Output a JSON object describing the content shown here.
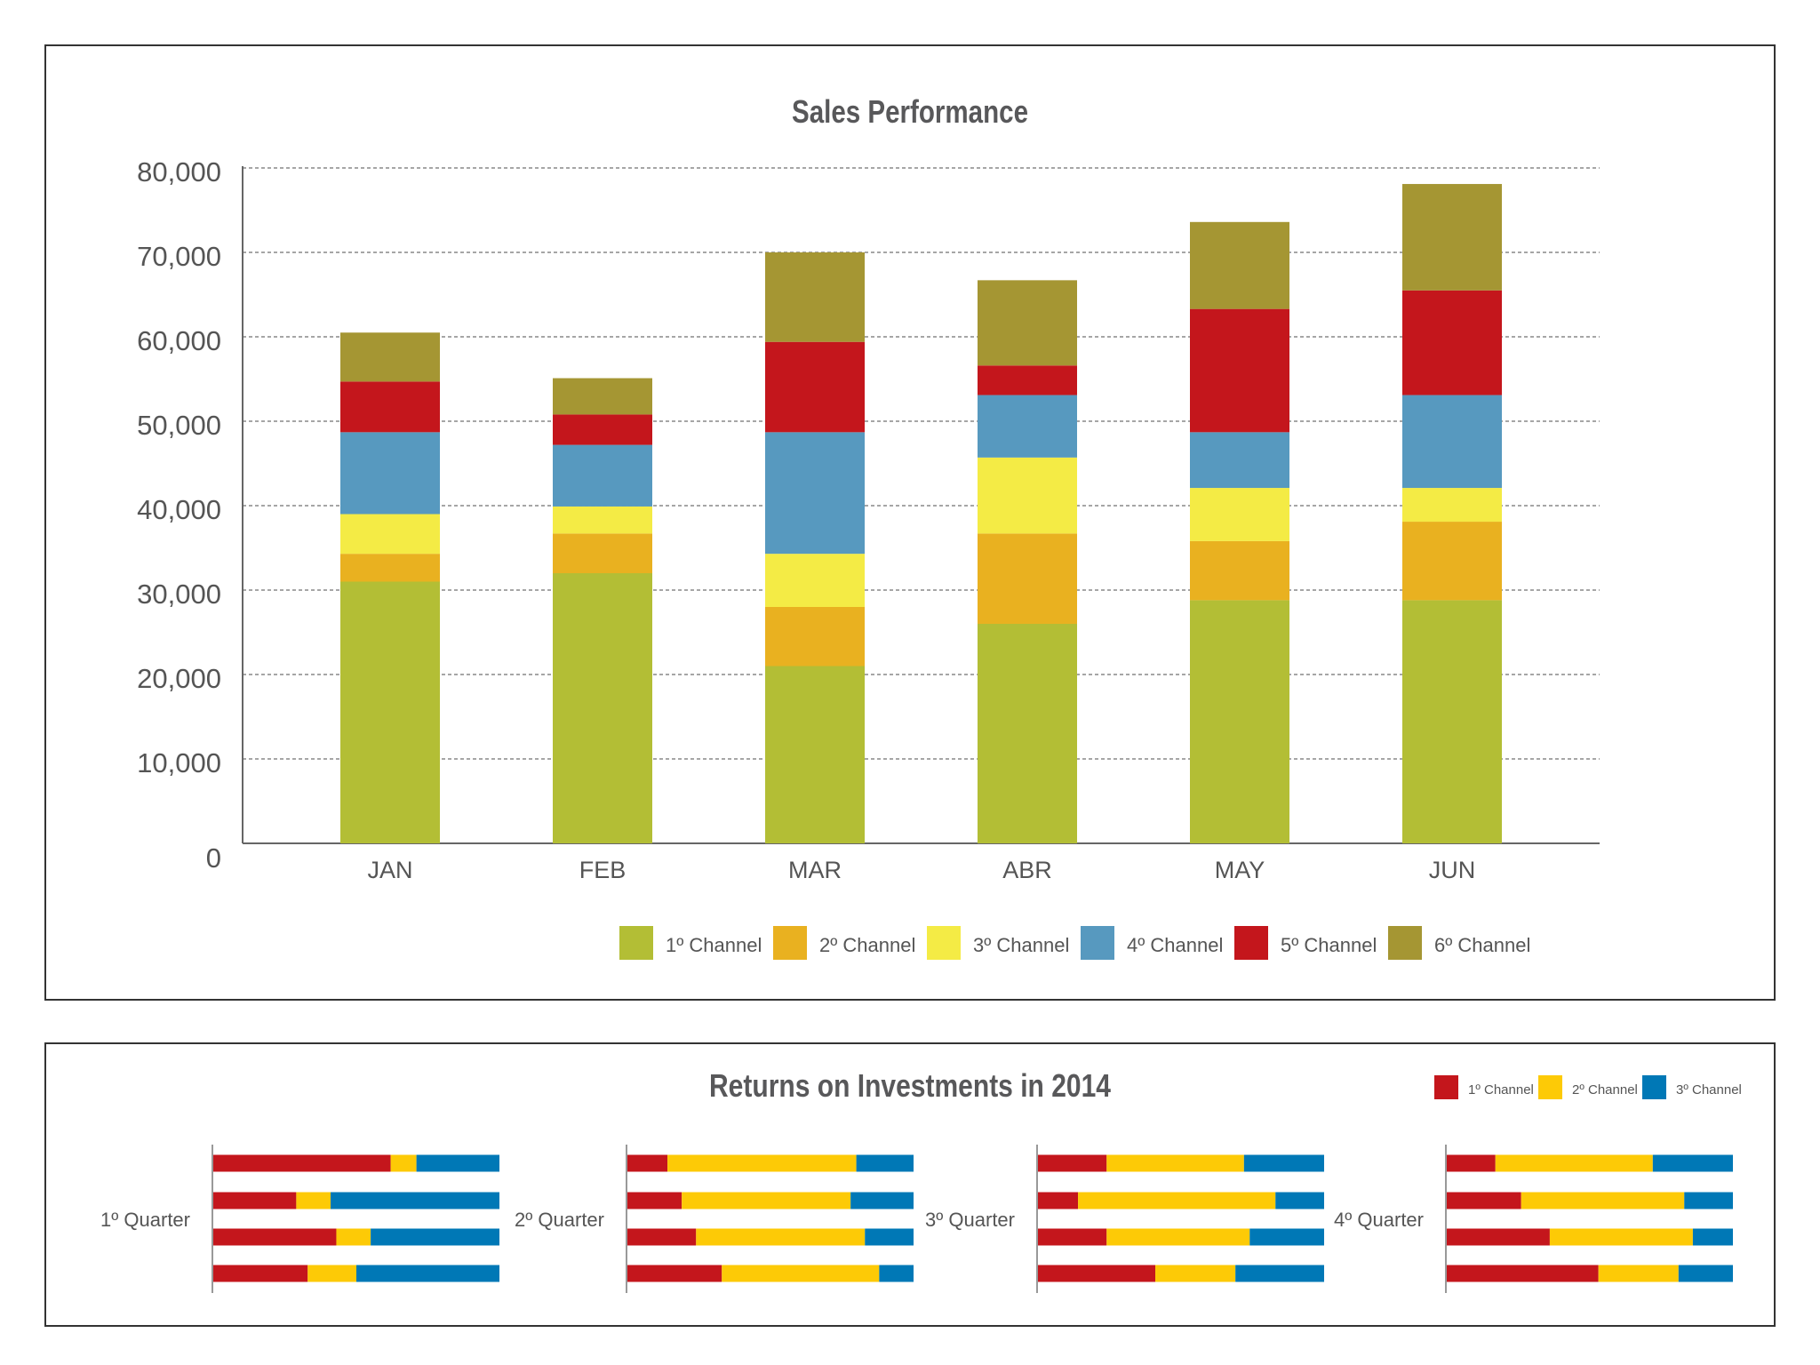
{
  "chart_data": [
    {
      "type": "bar",
      "stacked": true,
      "title": "Sales Performance",
      "xlabel": "",
      "ylabel": "",
      "ylim": [
        0,
        80000
      ],
      "yticks": [
        "0",
        "10,000",
        "20,000",
        "30,000",
        "40,000",
        "50,000",
        "60,000",
        "70,000",
        "80,000"
      ],
      "grid": true,
      "legend_position": "bottom",
      "categories": [
        "JAN",
        "FEB",
        "MAR",
        "ABR",
        "MAY",
        "JUN"
      ],
      "series": [
        {
          "name": "1º Channel",
          "color": "#b3be35",
          "values": [
            31000,
            32000,
            21000,
            26000,
            28800,
            28800
          ]
        },
        {
          "name": "2º Channel",
          "color": "#e9b120",
          "values": [
            3300,
            4700,
            7000,
            10700,
            7000,
            9300
          ]
        },
        {
          "name": "3º Channel",
          "color": "#f4eb45",
          "values": [
            4700,
            3200,
            6300,
            9000,
            6300,
            4000
          ]
        },
        {
          "name": "4º Channel",
          "color": "#5799bf",
          "values": [
            9700,
            7300,
            14400,
            7400,
            6600,
            11000
          ]
        },
        {
          "name": "5º Channel",
          "color": "#c4161c",
          "values": [
            6000,
            3600,
            10700,
            3500,
            14600,
            12400
          ]
        },
        {
          "name": "6º Channel",
          "color": "#a59633",
          "values": [
            5800,
            4300,
            10600,
            10100,
            10300,
            12600
          ]
        }
      ]
    },
    {
      "type": "bar",
      "orientation": "horizontal",
      "stacked": true,
      "normalized_percent": true,
      "title": "Returns on Investments in 2014",
      "legend_position": "top-right",
      "series_names": [
        "1º Channel",
        "2º Channel",
        "3º Channel"
      ],
      "colors": [
        "#c4161c",
        "#fdca06",
        "#0078b6"
      ],
      "groups": [
        {
          "label": "1º Quarter",
          "bars": [
            [
              62,
              9,
              29
            ],
            [
              29,
              12,
              59
            ],
            [
              43,
              12,
              45
            ],
            [
              33,
              17,
              50
            ]
          ]
        },
        {
          "label": "2º Quarter",
          "bars": [
            [
              14,
              66,
              20
            ],
            [
              19,
              59,
              22
            ],
            [
              24,
              59,
              17
            ],
            [
              33,
              55,
              12
            ]
          ]
        },
        {
          "label": "3º Quarter",
          "bars": [
            [
              24,
              48,
              28
            ],
            [
              14,
              69,
              17
            ],
            [
              24,
              50,
              26
            ],
            [
              41,
              28,
              31
            ]
          ]
        },
        {
          "label": "4º Quarter",
          "bars": [
            [
              17,
              55,
              28
            ],
            [
              26,
              57,
              17
            ],
            [
              36,
              50,
              14
            ],
            [
              53,
              28,
              19
            ]
          ]
        }
      ]
    }
  ]
}
